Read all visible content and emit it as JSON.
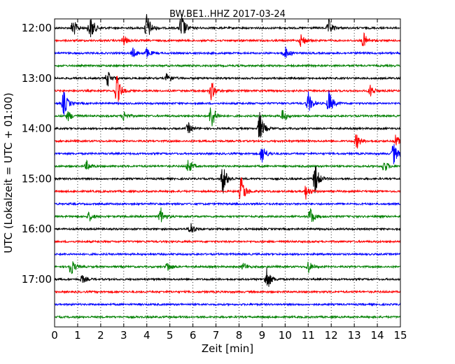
{
  "chart_data": {
    "type": "line",
    "title": "BW.BE1..HHZ 2017-03-24",
    "xlabel": "Zeit  [min]",
    "ylabel": "UTC (Lokalzeit = UTC + 01:00)",
    "xlim": [
      0,
      15
    ],
    "x_ticks": [
      "0",
      "1",
      "2",
      "3",
      "4",
      "5",
      "6",
      "7",
      "8",
      "9",
      "10",
      "11",
      "12",
      "13",
      "14",
      "15"
    ],
    "y_tick_labels": [
      "12:00",
      "13:00",
      "14:00",
      "15:00",
      "16:00",
      "17:00"
    ],
    "y_tick_rows": [
      0,
      4,
      8,
      12,
      16,
      20
    ],
    "grid": "vertical dotted",
    "row_minutes": 15,
    "row_colors": [
      "#000000",
      "#ff0000",
      "#0000ff",
      "#008000"
    ],
    "rows": [
      {
        "start": "12:00",
        "events": [
          [
            0.8,
            0.6
          ],
          [
            1.5,
            0.35
          ],
          [
            1.6,
            0.5
          ],
          [
            4.0,
            1.0
          ],
          [
            5.5,
            1.0
          ],
          [
            11.9,
            0.5
          ]
        ]
      },
      {
        "start": "12:15",
        "events": [
          [
            3.0,
            0.3
          ],
          [
            10.7,
            0.45
          ],
          [
            13.4,
            0.5
          ]
        ]
      },
      {
        "start": "12:30",
        "events": [
          [
            3.4,
            0.3
          ],
          [
            4.0,
            0.3
          ],
          [
            10.0,
            0.4
          ]
        ]
      },
      {
        "start": "12:45",
        "events": []
      },
      {
        "start": "13:00",
        "events": [
          [
            2.3,
            0.5
          ],
          [
            4.9,
            0.4
          ]
        ]
      },
      {
        "start": "13:15",
        "events": [
          [
            2.7,
            1.0
          ],
          [
            6.8,
            0.6
          ],
          [
            13.7,
            0.4
          ]
        ]
      },
      {
        "start": "13:30",
        "events": [
          [
            0.4,
            0.8
          ],
          [
            11.0,
            0.7
          ],
          [
            11.9,
            0.8
          ]
        ]
      },
      {
        "start": "13:45",
        "events": [
          [
            0.6,
            0.3
          ],
          [
            3.0,
            0.3
          ],
          [
            6.8,
            0.9
          ],
          [
            9.9,
            0.4
          ]
        ]
      },
      {
        "start": "14:00",
        "events": [
          [
            5.8,
            0.35
          ],
          [
            8.9,
            1.0
          ]
        ]
      },
      {
        "start": "14:15",
        "events": [
          [
            13.1,
            0.5
          ],
          [
            14.8,
            0.4
          ]
        ]
      },
      {
        "start": "14:30",
        "events": [
          [
            9.0,
            0.65
          ],
          [
            14.7,
            0.7
          ]
        ]
      },
      {
        "start": "14:45",
        "events": [
          [
            1.4,
            0.3
          ],
          [
            5.8,
            0.5
          ],
          [
            14.3,
            0.4
          ]
        ]
      },
      {
        "start": "15:00",
        "events": [
          [
            7.3,
            1.0
          ],
          [
            11.3,
            1.0
          ]
        ]
      },
      {
        "start": "15:15",
        "events": [
          [
            8.1,
            1.0
          ],
          [
            10.9,
            0.45
          ]
        ]
      },
      {
        "start": "15:30",
        "events": []
      },
      {
        "start": "15:45",
        "events": [
          [
            1.5,
            0.3
          ],
          [
            4.6,
            0.55
          ],
          [
            11.1,
            0.6
          ]
        ]
      },
      {
        "start": "16:00",
        "events": [
          [
            5.9,
            0.45
          ]
        ]
      },
      {
        "start": "16:15",
        "events": []
      },
      {
        "start": "16:30",
        "events": []
      },
      {
        "start": "16:45",
        "events": [
          [
            0.7,
            0.6
          ],
          [
            4.9,
            0.3
          ],
          [
            8.2,
            0.25
          ],
          [
            11.0,
            0.4
          ]
        ]
      },
      {
        "start": "17:00",
        "events": [
          [
            1.2,
            0.25
          ],
          [
            9.2,
            0.8
          ]
        ]
      },
      {
        "start": "17:15",
        "events": []
      },
      {
        "start": "17:30",
        "events": []
      },
      {
        "start": "17:45",
        "events": []
      }
    ]
  }
}
